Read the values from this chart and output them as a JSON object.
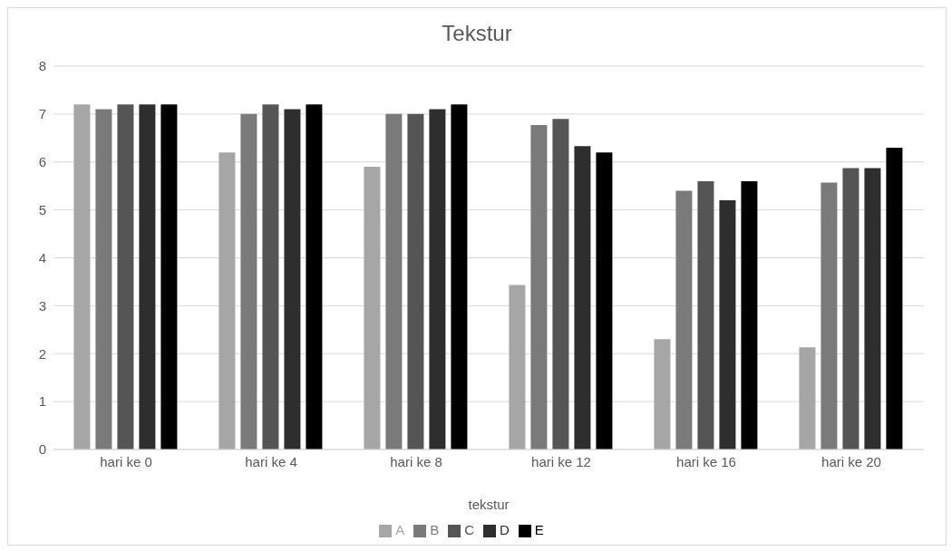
{
  "chart_data": {
    "type": "bar",
    "title": "Tekstur",
    "xlabel": "tekstur",
    "categories": [
      "hari ke 0",
      "hari ke 4",
      "hari ke 8",
      "hari ke 12",
      "hari ke 16",
      "hari ke 20"
    ],
    "series": [
      {
        "name": "A",
        "color": "#a6a6a6",
        "values": [
          7.2,
          6.2,
          5.9,
          3.43,
          2.3,
          2.13
        ]
      },
      {
        "name": "B",
        "color": "#7a7a7a",
        "values": [
          7.1,
          7.0,
          7.0,
          6.77,
          5.4,
          5.57
        ]
      },
      {
        "name": "C",
        "color": "#555555",
        "values": [
          7.2,
          7.2,
          7.0,
          6.9,
          5.6,
          5.87
        ]
      },
      {
        "name": "D",
        "color": "#2e2e2e",
        "values": [
          7.2,
          7.1,
          7.1,
          6.33,
          5.2,
          5.87
        ]
      },
      {
        "name": "E",
        "color": "#000000",
        "values": [
          7.2,
          7.2,
          7.2,
          6.2,
          5.6,
          6.3
        ]
      }
    ],
    "ylim": [
      0,
      8
    ],
    "yticks": [
      0,
      1,
      2,
      3,
      4,
      5,
      6,
      7,
      8
    ],
    "grid": "y",
    "legend": "bottom"
  }
}
